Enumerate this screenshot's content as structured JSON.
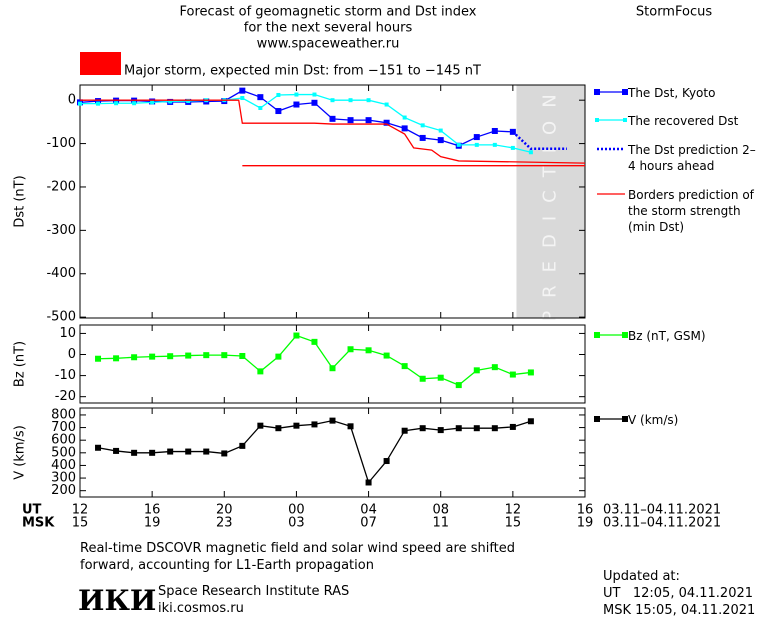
{
  "header": {
    "title": [
      "Forecast of geomagnetic storm and Dst index",
      "for the next several hours",
      "www.spaceweather.ru"
    ],
    "brand": "StormFocus",
    "alert": "Major storm, expected min Dst: from −151 to −145 nT",
    "alert_color": "#ff0000"
  },
  "chart_data": [
    {
      "type": "line",
      "ylabel": "Dst (nT)",
      "xlim": [
        0,
        28
      ],
      "ylim": [
        -502,
        35
      ],
      "yticks": [
        0,
        -100,
        -200,
        -300,
        -400,
        -500
      ],
      "shaded_region": [
        24.2,
        28
      ],
      "shaded_label": "PREDICTION",
      "series": [
        {
          "name": "The Dst, Kyoto",
          "color": "#0000ff",
          "marker": "square",
          "x": [
            0,
            1,
            2,
            3,
            4,
            5,
            6,
            7,
            8,
            9,
            10,
            11,
            12,
            13,
            14,
            15,
            16,
            17,
            18,
            19,
            20,
            21,
            22,
            23,
            24
          ],
          "values": [
            -5,
            -2,
            -1,
            -1,
            -3,
            -4,
            -4,
            -3,
            -2,
            22,
            7,
            -25,
            -10,
            -6,
            -43,
            -46,
            -46,
            -52,
            -65,
            -87,
            -92,
            -105,
            -85,
            -71,
            -73
          ]
        },
        {
          "name": "The recovered Dst",
          "color": "#00ffff",
          "marker": "small-square",
          "x": [
            0,
            1,
            2,
            3,
            4,
            5,
            6,
            7,
            8,
            9,
            10,
            11,
            12,
            13,
            14,
            15,
            16,
            17,
            18,
            19,
            20,
            21,
            22,
            23,
            24,
            25
          ],
          "values": [
            -8,
            -8,
            -7,
            -7,
            -5,
            -3,
            -2,
            0,
            0,
            5,
            -18,
            12,
            13,
            13,
            0,
            0,
            0,
            -10,
            -40,
            -58,
            -70,
            -103,
            -103,
            -103,
            -110,
            -120
          ]
        },
        {
          "name": "The Dst prediction 2–4 hours ahead",
          "color": "#0000ff",
          "dash": "dotted",
          "x": [
            24,
            25,
            27
          ],
          "values": [
            -73,
            -112,
            -112
          ]
        },
        {
          "name": "Borders prediction of the storm strength (min Dst)",
          "color": "#ff0000",
          "x": [
            0,
            8.8,
            9,
            13,
            14,
            17,
            18,
            18.5,
            19.5,
            20,
            21,
            28
          ],
          "values": [
            0,
            0,
            -53,
            -53,
            -55,
            -55,
            -78,
            -110,
            -115,
            -130,
            -140,
            -145
          ]
        },
        {
          "color": "#ff0000",
          "x": [
            9,
            28
          ],
          "values": [
            -151,
            -151
          ]
        }
      ]
    },
    {
      "type": "line",
      "ylabel": "Bz (nT)",
      "xlim": [
        0,
        28
      ],
      "ylim": [
        -23,
        14
      ],
      "yticks": [
        10,
        0,
        -10,
        -20
      ],
      "series": [
        {
          "name": "Bz (nT, GSM)",
          "color": "#00ff00",
          "marker": "square",
          "x": [
            1,
            2,
            3,
            4,
            5,
            6,
            7,
            8,
            9,
            10,
            11,
            12,
            13,
            14,
            15,
            16,
            17,
            18,
            19,
            20,
            21,
            22,
            23,
            24,
            25
          ],
          "values": [
            -2,
            -1.8,
            -1.3,
            -1,
            -0.8,
            -0.5,
            -0.3,
            -0.3,
            -0.7,
            -8,
            -1,
            9,
            6,
            -6.5,
            2.5,
            2,
            -0.5,
            -5.5,
            -11.5,
            -11,
            -14.5,
            -7.5,
            -6,
            -9.5,
            -8.5
          ]
        }
      ]
    },
    {
      "type": "line",
      "ylabel": "V (km/s)",
      "xlim": [
        0,
        28
      ],
      "ylim": [
        150,
        855
      ],
      "yticks": [
        800,
        700,
        600,
        500,
        400,
        300,
        200
      ],
      "xticks": [
        {
          "value": 0,
          "label": "12"
        },
        {
          "value": 4,
          "label": "16"
        },
        {
          "value": 8,
          "label": "20"
        },
        {
          "value": 12,
          "label": "00"
        },
        {
          "value": 16,
          "label": "04"
        },
        {
          "value": 20,
          "label": "08"
        },
        {
          "value": 24,
          "label": "12"
        },
        {
          "value": 28,
          "label": "16"
        }
      ],
      "x2ticks": [
        {
          "value": 0,
          "label": "15"
        },
        {
          "value": 4,
          "label": "19"
        },
        {
          "value": 8,
          "label": "23"
        },
        {
          "value": 12,
          "label": "03"
        },
        {
          "value": 16,
          "label": "07"
        },
        {
          "value": 20,
          "label": "11"
        },
        {
          "value": 24,
          "label": "15"
        },
        {
          "value": 28,
          "label": "19"
        }
      ],
      "xlabel": "UT",
      "x2label": "MSK",
      "xrange_label": "03.11–04.11.2021",
      "x2range_label": "03.11–04.11.2021",
      "series": [
        {
          "name": "V (km/s)",
          "color": "#000000",
          "marker": "square",
          "x": [
            1,
            2,
            3,
            4,
            5,
            6,
            7,
            8,
            9,
            10,
            11,
            12,
            13,
            14,
            15,
            16,
            17,
            18,
            19,
            20,
            21,
            22,
            23,
            24,
            25
          ],
          "values": [
            540,
            515,
            500,
            500,
            510,
            510,
            510,
            495,
            555,
            715,
            695,
            715,
            725,
            755,
            710,
            265,
            435,
            675,
            695,
            680,
            695,
            695,
            695,
            705,
            750
          ]
        }
      ]
    }
  ],
  "footer": {
    "note": [
      "Real-time DSCOVR magnetic field and solar wind speed are shifted",
      "forward, accounting for L1-Earth propagation"
    ],
    "logo": "ИКИ",
    "institute": "Space Research Institute RAS",
    "site": "iki.cosmos.ru",
    "updated": [
      "Updated at:",
      "UT   12:05, 04.11.2021",
      "MSK 15:05, 04.11.2021"
    ]
  }
}
